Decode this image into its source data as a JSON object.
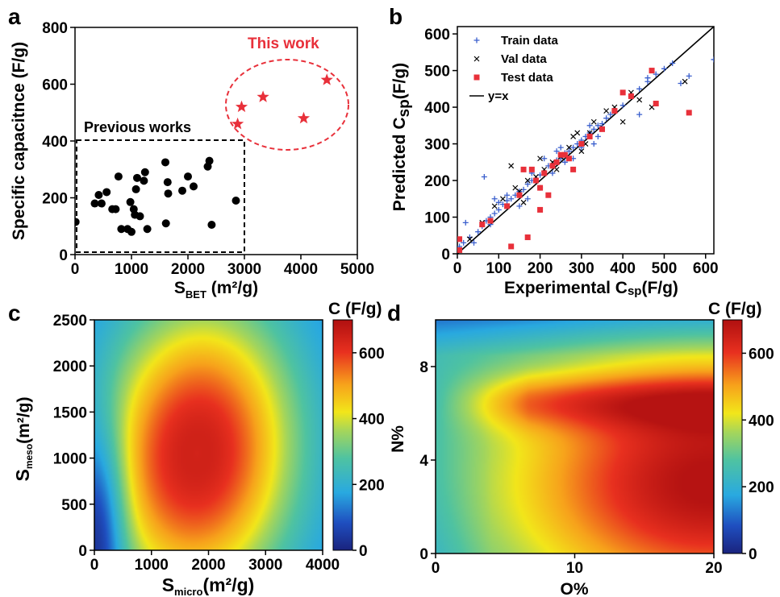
{
  "chart_data": [
    {
      "panel": "a",
      "type": "scatter",
      "xlabel": "S",
      "xlabel_sub": "BET",
      "xlabel_unit": " (m²/g)",
      "ylabel": "Specific capacitnce (F/g)",
      "xlim": [
        0,
        5000
      ],
      "ylim": [
        0,
        800
      ],
      "x_ticks": [
        "0",
        "1000",
        "2000",
        "3000",
        "4000",
        "5000"
      ],
      "y_ticks": [
        "0",
        "200",
        "400",
        "600",
        "800"
      ],
      "annotations": [
        "This work",
        "Previous works"
      ],
      "series": [
        {
          "marker": "circle",
          "color": "#000000",
          "points": [
            [
              10,
              115
            ],
            [
              350,
              180
            ],
            [
              420,
              210
            ],
            [
              470,
              180
            ],
            [
              560,
              220
            ],
            [
              660,
              160
            ],
            [
              720,
              160
            ],
            [
              770,
              275
            ],
            [
              820,
              90
            ],
            [
              930,
              90
            ],
            [
              980,
              185
            ],
            [
              1000,
              80
            ],
            [
              1040,
              160
            ],
            [
              1060,
              140
            ],
            [
              1080,
              230
            ],
            [
              1100,
              270
            ],
            [
              1150,
              135
            ],
            [
              1220,
              260
            ],
            [
              1240,
              290
            ],
            [
              1280,
              90
            ],
            [
              1600,
              325
            ],
            [
              1610,
              110
            ],
            [
              1640,
              255
            ],
            [
              1650,
              215
            ],
            [
              1900,
              225
            ],
            [
              2000,
              275
            ],
            [
              2100,
              240
            ],
            [
              2350,
              310
            ],
            [
              2380,
              330
            ],
            [
              2420,
              105
            ],
            [
              2850,
              190
            ]
          ]
        },
        {
          "marker": "star",
          "color": "#e8303a",
          "points": [
            [
              2880,
              460
            ],
            [
              2950,
              520
            ],
            [
              3330,
              555
            ],
            [
              4050,
              480
            ],
            [
              4460,
              615
            ]
          ]
        }
      ]
    },
    {
      "panel": "b",
      "type": "scatter",
      "xlabel": "Experimental C",
      "xlabel_sub": "sp",
      "xlabel_unit": "(F/g)",
      "ylabel": "Predicted C",
      "ylabel_sub": "sp",
      "ylabel_unit": "(F/g)",
      "xlim": [
        0,
        620
      ],
      "ylim": [
        0,
        620
      ],
      "x_ticks": [
        "0",
        "100",
        "200",
        "300",
        "400",
        "500",
        "600"
      ],
      "y_ticks": [
        "0",
        "100",
        "200",
        "300",
        "400",
        "500",
        "600"
      ],
      "legend_position": "top-left",
      "series": [
        {
          "name": "Train data",
          "marker": "plus",
          "color": "#3a5fcd",
          "points": [
            [
              5,
              20
            ],
            [
              15,
              30
            ],
            [
              30,
              45
            ],
            [
              40,
              30
            ],
            [
              50,
              60
            ],
            [
              60,
              75
            ],
            [
              65,
              210
            ],
            [
              70,
              90
            ],
            [
              80,
              100
            ],
            [
              90,
              110
            ],
            [
              100,
              120
            ],
            [
              110,
              135
            ],
            [
              120,
              145
            ],
            [
              130,
              150
            ],
            [
              140,
              160
            ],
            [
              150,
              170
            ],
            [
              160,
              175
            ],
            [
              170,
              190
            ],
            [
              180,
              200
            ],
            [
              190,
              205
            ],
            [
              200,
              215
            ],
            [
              210,
              225
            ],
            [
              220,
              240
            ],
            [
              230,
              245
            ],
            [
              240,
              255
            ],
            [
              250,
              260
            ],
            [
              260,
              275
            ],
            [
              270,
              280
            ],
            [
              280,
              290
            ],
            [
              290,
              300
            ],
            [
              300,
              310
            ],
            [
              310,
              320
            ],
            [
              320,
              330
            ],
            [
              330,
              340
            ],
            [
              340,
              350
            ],
            [
              350,
              355
            ],
            [
              360,
              370
            ],
            [
              370,
              380
            ],
            [
              380,
              390
            ],
            [
              400,
              405
            ],
            [
              420,
              430
            ],
            [
              440,
              450
            ],
            [
              460,
              470
            ],
            [
              480,
              490
            ],
            [
              500,
              505
            ],
            [
              520,
              520
            ],
            [
              540,
              465
            ],
            [
              560,
              485
            ],
            [
              620,
              530
            ],
            [
              150,
              130
            ],
            [
              170,
              150
            ],
            [
              230,
              220
            ],
            [
              260,
              250
            ],
            [
              300,
              290
            ],
            [
              320,
              350
            ],
            [
              250,
              290
            ],
            [
              210,
              260
            ],
            [
              200,
              180
            ],
            [
              280,
              260
            ],
            [
              340,
              320
            ],
            [
              120,
              160
            ],
            [
              100,
              140
            ],
            [
              80,
              80
            ],
            [
              440,
              380
            ],
            [
              460,
              480
            ],
            [
              90,
              150
            ],
            [
              180,
              220
            ],
            [
              240,
              280
            ],
            [
              330,
              300
            ],
            [
              20,
              85
            ]
          ]
        },
        {
          "name": "Val data",
          "marker": "x",
          "color": "#000000",
          "points": [
            [
              30,
              40
            ],
            [
              60,
              85
            ],
            [
              90,
              130
            ],
            [
              110,
              150
            ],
            [
              130,
              240
            ],
            [
              150,
              170
            ],
            [
              170,
              200
            ],
            [
              190,
              210
            ],
            [
              210,
              230
            ],
            [
              230,
              250
            ],
            [
              250,
              265
            ],
            [
              270,
              290
            ],
            [
              280,
              320
            ],
            [
              290,
              330
            ],
            [
              310,
              300
            ],
            [
              330,
              360
            ],
            [
              350,
              340
            ],
            [
              360,
              390
            ],
            [
              380,
              400
            ],
            [
              400,
              360
            ],
            [
              420,
              440
            ],
            [
              440,
              420
            ],
            [
              470,
              400
            ],
            [
              550,
              470
            ],
            [
              200,
              260
            ],
            [
              240,
              230
            ],
            [
              300,
              280
            ],
            [
              320,
              330
            ],
            [
              160,
              140
            ],
            [
              140,
              180
            ]
          ]
        },
        {
          "name": "Test data",
          "marker": "square",
          "color": "#e8303a",
          "points": [
            [
              5,
              10
            ],
            [
              5,
              40
            ],
            [
              60,
              80
            ],
            [
              80,
              90
            ],
            [
              120,
              130
            ],
            [
              130,
              20
            ],
            [
              150,
              160
            ],
            [
              160,
              230
            ],
            [
              170,
              45
            ],
            [
              180,
              230
            ],
            [
              190,
              200
            ],
            [
              200,
              180
            ],
            [
              210,
              220
            ],
            [
              200,
              120
            ],
            [
              220,
              160
            ],
            [
              240,
              250
            ],
            [
              250,
              270
            ],
            [
              260,
              270
            ],
            [
              280,
              230
            ],
            [
              300,
              300
            ],
            [
              320,
              320
            ],
            [
              350,
              340
            ],
            [
              380,
              390
            ],
            [
              400,
              440
            ],
            [
              420,
              430
            ],
            [
              470,
              500
            ],
            [
              480,
              410
            ],
            [
              560,
              385
            ],
            [
              230,
              240
            ],
            [
              270,
              260
            ]
          ]
        },
        {
          "name": "y=x",
          "marker": "line",
          "color": "#000000",
          "line": [
            [
              0,
              0
            ],
            [
              620,
              620
            ]
          ]
        }
      ]
    },
    {
      "panel": "c",
      "type": "heatmap",
      "xlabel": "S",
      "xlabel_sub": "micro",
      "xlabel_unit": "(m²/g)",
      "ylabel": "S",
      "ylabel_sub": "meso",
      "ylabel_unit": "(m²/g)",
      "xlim": [
        0,
        4000
      ],
      "ylim": [
        0,
        2500
      ],
      "x_ticks": [
        "0",
        "1000",
        "2000",
        "3000",
        "4000"
      ],
      "y_ticks": [
        "0",
        "500",
        "1000",
        "1500",
        "2000",
        "2500"
      ],
      "colorbar_title": "C (F/g)",
      "colorbar_ticks": [
        "0",
        "200",
        "400",
        "600"
      ],
      "colorbar_range": [
        0,
        700
      ],
      "peak": {
        "x": 1800,
        "y": 1050,
        "value": 640
      }
    },
    {
      "panel": "d",
      "type": "heatmap",
      "xlabel": "O%",
      "ylabel": "N%",
      "xlim": [
        0,
        20
      ],
      "ylim": [
        0,
        10
      ],
      "x_ticks": [
        "0",
        "10",
        "20"
      ],
      "y_ticks": [
        "0",
        "4",
        "8"
      ],
      "colorbar_title": "C (F/g)",
      "colorbar_ticks": [
        "0",
        "200",
        "400",
        "600"
      ],
      "colorbar_range": [
        0,
        700
      ],
      "peak": {
        "x": 20,
        "y": 3,
        "value": 690
      }
    }
  ],
  "panel_letters": [
    "a",
    "b",
    "c",
    "d"
  ],
  "colors": {
    "test_red": "#e8303a",
    "train_blue": "#3a5fcd",
    "black": "#000000"
  }
}
